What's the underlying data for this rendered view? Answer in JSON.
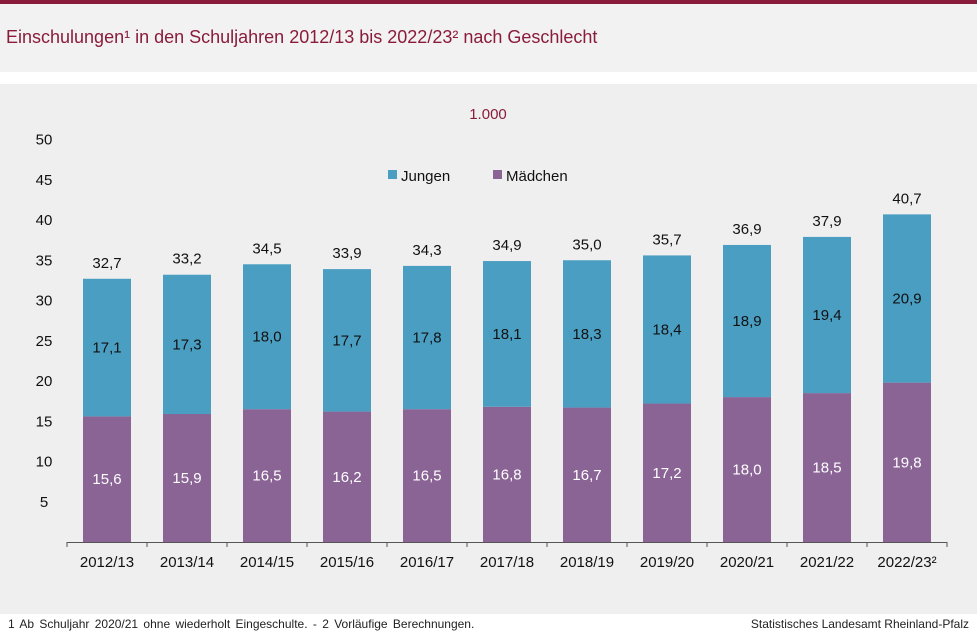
{
  "header": {
    "title": "Einschulungen¹ in den Schuljahren 2012/13 bis 2022/23² nach Geschlecht"
  },
  "footer": {
    "footnote": "1 Ab Schuljahr 2020/21 ohne wiederholt Eingeschulte. - 2 Vorläufige Berechnungen.",
    "source": "Statistisches Landesamt Rheinland-Pfalz"
  },
  "colors": {
    "title": "#8a1c3b",
    "jungen": "#4a9ec2",
    "maedchen": "#8b6496"
  },
  "chart_data": {
    "type": "bar",
    "stacked": true,
    "unit_label": "1.000",
    "categories": [
      "2012/13",
      "2013/14",
      "2014/15",
      "2015/16",
      "2016/17",
      "2017/18",
      "2018/19",
      "2019/20",
      "2020/21",
      "2021/22",
      "2022/23²"
    ],
    "series": [
      {
        "name": "Mädchen",
        "values": [
          15.6,
          15.9,
          16.5,
          16.2,
          16.5,
          16.8,
          16.7,
          17.2,
          18.0,
          18.5,
          19.8
        ],
        "labels": [
          "15,6",
          "15,9",
          "16,5",
          "16,2",
          "16,5",
          "16,8",
          "16,7",
          "17,2",
          "18,0",
          "18,5",
          "19,8"
        ]
      },
      {
        "name": "Jungen",
        "values": [
          17.1,
          17.3,
          18.0,
          17.7,
          17.8,
          18.1,
          18.3,
          18.4,
          18.9,
          19.4,
          20.9
        ],
        "labels": [
          "17,1",
          "17,3",
          "18,0",
          "17,7",
          "17,8",
          "18,1",
          "18,3",
          "18,4",
          "18,9",
          "19,4",
          "20,9"
        ]
      }
    ],
    "totals": [
      "32,7",
      "33,2",
      "34,5",
      "33,9",
      "34,3",
      "34,9",
      "35,0",
      "35,7",
      "36,9",
      "37,9",
      "40,7"
    ],
    "legend": {
      "position": "top-center",
      "entries": [
        "Jungen",
        "Mädchen"
      ]
    },
    "yticks": [
      "50",
      "45",
      "40",
      "35",
      "30",
      "25",
      "20",
      "15",
      "10",
      "5"
    ],
    "ylim": [
      0,
      50
    ],
    "grid": false
  }
}
